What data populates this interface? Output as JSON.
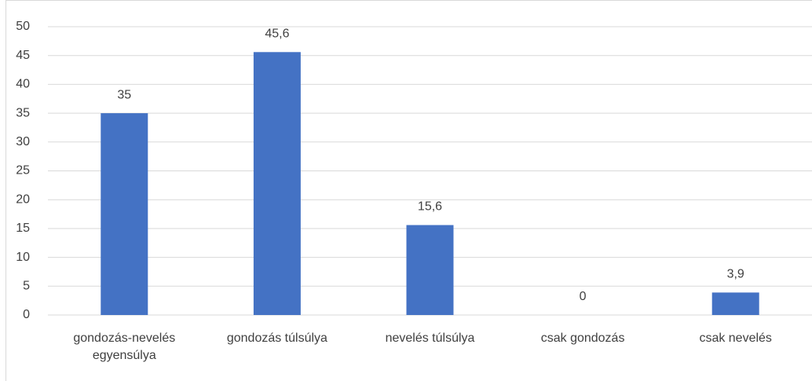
{
  "chart_data": {
    "type": "bar",
    "categories": [
      "gondozás-nevelés egyensúlya",
      "gondozás túlsúlya",
      "nevelés túlsúlya",
      "csak gondozás",
      "csak nevelés"
    ],
    "values": [
      35,
      45.6,
      15.6,
      0,
      3.9
    ],
    "value_labels": [
      "35",
      "45,6",
      "15,6",
      "0",
      "3,9"
    ],
    "color": "#4472c4",
    "ylim": [
      0,
      50
    ],
    "yticks": [
      0,
      5,
      10,
      15,
      20,
      25,
      30,
      35,
      40,
      45,
      50
    ],
    "grid": true
  }
}
